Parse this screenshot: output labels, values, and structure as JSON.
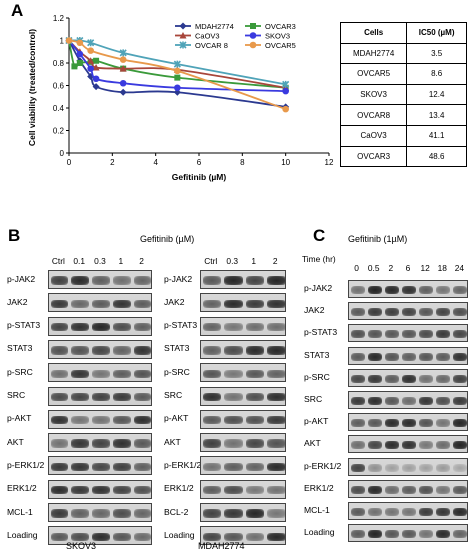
{
  "panel_a": {
    "letter": "A",
    "chart_data": {
      "type": "line",
      "xlabel": "Gefitinib (µM)",
      "ylabel": "Cell viability (treated/control)",
      "xlim": [
        0,
        12
      ],
      "ylim": [
        0,
        1.2
      ],
      "x_ticks": [
        "0",
        "2",
        "4",
        "6",
        "8",
        "10",
        "12"
      ],
      "y_ticks": [
        "0",
        "0.2",
        "0.4",
        "0.6",
        "0.8",
        "1",
        "1.2"
      ],
      "grid": false,
      "legend_position": "top, inside plot (two columns)",
      "series": [
        {
          "name": "MDAH2774",
          "color": "#2b3990",
          "marker": "diamond",
          "x": [
            0,
            0.5,
            1,
            1.25,
            2.5,
            5,
            10
          ],
          "y": [
            1.0,
            0.82,
            0.68,
            0.59,
            0.54,
            0.54,
            0.41
          ]
        },
        {
          "name": "OVCAR3",
          "color": "#3a9a3a",
          "marker": "square",
          "x": [
            0,
            0.25,
            0.5,
            1,
            1.25,
            2.5,
            5,
            10
          ],
          "y": [
            1.0,
            0.77,
            0.8,
            0.81,
            0.82,
            0.75,
            0.67,
            0.58
          ]
        },
        {
          "name": "CaOV3",
          "color": "#a8463b",
          "marker": "triangle",
          "x": [
            0,
            0.5,
            1,
            1.25,
            2.5,
            5,
            10
          ],
          "y": [
            1.0,
            0.9,
            0.82,
            0.76,
            0.75,
            0.74,
            0.58
          ]
        },
        {
          "name": "SKOV3",
          "color": "#3a3adf",
          "marker": "circle",
          "x": [
            0,
            0.5,
            1,
            1.25,
            2.5,
            5,
            10
          ],
          "y": [
            1.0,
            0.88,
            0.75,
            0.66,
            0.62,
            0.58,
            0.55
          ]
        },
        {
          "name": "OVCAR 8",
          "color": "#4fa3b8",
          "marker": "x",
          "x": [
            0,
            0.5,
            1,
            2.5,
            5,
            10
          ],
          "y": [
            1.0,
            1.0,
            0.98,
            0.89,
            0.79,
            0.61
          ]
        },
        {
          "name": "OVCAR5",
          "color": "#e8994b",
          "marker": "circle",
          "x": [
            0,
            0.5,
            1,
            2.5,
            5,
            10
          ],
          "y": [
            1.0,
            0.98,
            0.91,
            0.83,
            0.73,
            0.39
          ]
        }
      ]
    },
    "table": {
      "headers": [
        "Cells",
        "IC50 (µM)"
      ],
      "rows": [
        [
          "MDAH2774",
          "3.5"
        ],
        [
          "OVCAR5",
          "8.6"
        ],
        [
          "SKOV3",
          "12.4"
        ],
        [
          "OVCAR8",
          "13.4"
        ],
        [
          "CaOV3",
          "41.1"
        ],
        [
          "OVCAR3",
          "48.6"
        ]
      ]
    }
  },
  "panel_b": {
    "letter": "B",
    "treatment": "Gefitinib (µM)",
    "skov3": {
      "cell_line": "SKOV3",
      "doses": [
        "Ctrl",
        "0.1",
        "0.3",
        "1",
        "2"
      ],
      "proteins": [
        "p-JAK2",
        "JAK2",
        "p-STAT3",
        "STAT3",
        "p-SRC",
        "SRC",
        "p-AKT",
        "AKT",
        "p-ERK1/2",
        "ERK1/2",
        "MCL-1",
        "Loading"
      ]
    },
    "mdah": {
      "cell_line": "MDAH2774",
      "doses": [
        "Ctrl",
        "0.3",
        "1",
        "2"
      ],
      "proteins": [
        "p-JAK2",
        "JAK2",
        "p-STAT3",
        "STAT3",
        "p-SRC",
        "SRC",
        "p-AKT",
        "AKT",
        "p-ERK1/2",
        "ERK1/2",
        "BCL-2",
        "Loading"
      ]
    }
  },
  "panel_c": {
    "letter": "C",
    "treatment": "Gefitinib (1µM)",
    "time_label": "Time (hr)",
    "times": [
      "0",
      "0.5",
      "2",
      "6",
      "12",
      "18",
      "24"
    ],
    "proteins": [
      "p-JAK2",
      "JAK2",
      "p-STAT3",
      "STAT3",
      "p-SRC",
      "SRC",
      "p-AKT",
      "AKT",
      "p-ERK1/2",
      "ERK1/2",
      "MCL-1",
      "Loading"
    ]
  }
}
